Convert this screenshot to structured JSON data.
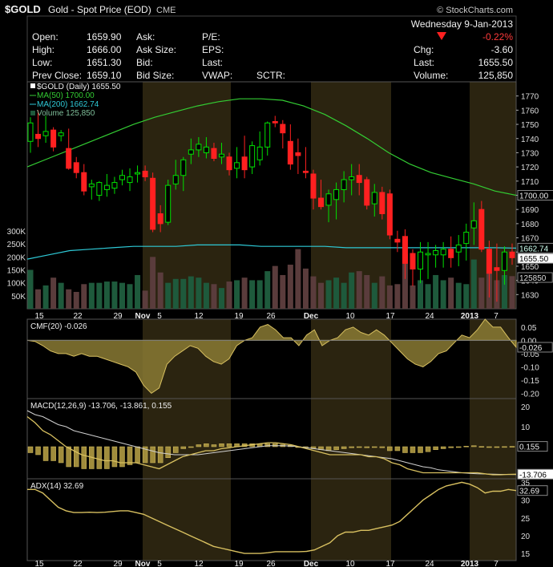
{
  "header": {
    "symbol": "$GOLD",
    "name": "Gold - Spot Price (EOD)",
    "exchange": "CME",
    "brand": "© StockCharts.com",
    "date": "Wednesday  9-Jan-2013",
    "change_pct": "-0.22%",
    "quote": [
      {
        "label": "Open:",
        "value": "1659.90"
      },
      {
        "label": "High:",
        "value": "1666.00"
      },
      {
        "label": "Low:",
        "value": "1651.30"
      },
      {
        "label": "Prev Close:",
        "value": "1659.10"
      }
    ],
    "quote2": [
      {
        "label": "Ask:",
        "value": ""
      },
      {
        "label": "Ask Size:",
        "value": ""
      },
      {
        "label": "Bid:",
        "value": ""
      },
      {
        "label": "Bid Size:",
        "value": ""
      }
    ],
    "quote3": [
      "P/E:",
      "EPS:",
      "Last:",
      "VWAP:"
    ],
    "sctr": "SCTR:",
    "right": [
      {
        "label": "Chg:",
        "value": "-3.60"
      },
      {
        "label": "Last:",
        "value": "1655.50"
      },
      {
        "label": "Volume:",
        "value": "125,850"
      }
    ]
  },
  "colors": {
    "up": "#00e000",
    "down": "#ff2020",
    "ma50": "#33cc33",
    "ma200": "#2ec9d6",
    "shade": "#2b2410",
    "ind": "#d8c060"
  },
  "chart_data": [
    {
      "type": "candlestick",
      "title": "$GOLD (Daily) 1655.50",
      "legend": [
        "MA(50) 1700.00",
        "MA(200) 1662.74",
        "Volume 125,850"
      ],
      "ylim": [
        1620,
        1780
      ],
      "yticks": [
        1630,
        1640,
        1650,
        1660,
        1670,
        1680,
        1690,
        1700,
        1710,
        1720,
        1730,
        1740,
        1750,
        1760,
        1770
      ],
      "value_tags": [
        "1700.00",
        "1662.74",
        "1655.50"
      ],
      "xticks": [
        "15",
        "22",
        "29",
        "Nov",
        "5",
        "12",
        "19",
        "26",
        "Dec",
        "10",
        "17",
        "24",
        "2013",
        "7"
      ],
      "ohlc": [
        [
          1738,
          1755,
          1730,
          1751
        ],
        [
          1743,
          1760,
          1734,
          1740
        ],
        [
          1742,
          1756,
          1737,
          1745
        ],
        [
          1746,
          1748,
          1731,
          1734
        ],
        [
          1742,
          1746,
          1738,
          1744
        ],
        [
          1733,
          1747,
          1718,
          1719
        ],
        [
          1723,
          1727,
          1712,
          1716
        ],
        [
          1716,
          1722,
          1700,
          1703
        ],
        [
          1706,
          1711,
          1697,
          1708
        ],
        [
          1700,
          1710,
          1696,
          1709
        ],
        [
          1704,
          1715,
          1699,
          1707
        ],
        [
          1705,
          1713,
          1701,
          1709
        ],
        [
          1711,
          1718,
          1707,
          1714
        ],
        [
          1709,
          1719,
          1703,
          1713
        ],
        [
          1715,
          1721,
          1709,
          1716
        ],
        [
          1717,
          1721,
          1710,
          1713
        ],
        [
          1712,
          1716,
          1674,
          1676
        ],
        [
          1687,
          1693,
          1674,
          1680
        ],
        [
          1681,
          1711,
          1679,
          1707
        ],
        [
          1708,
          1725,
          1704,
          1714
        ],
        [
          1714,
          1727,
          1703,
          1725
        ],
        [
          1729,
          1740,
          1722,
          1732
        ],
        [
          1732,
          1741,
          1727,
          1736
        ],
        [
          1730,
          1741,
          1726,
          1734
        ],
        [
          1733,
          1737,
          1724,
          1726
        ],
        [
          1727,
          1737,
          1722,
          1729
        ],
        [
          1727,
          1730,
          1714,
          1718
        ],
        [
          1719,
          1734,
          1712,
          1723
        ],
        [
          1727,
          1742,
          1712,
          1718
        ],
        [
          1720,
          1738,
          1715,
          1735
        ],
        [
          1725,
          1745,
          1721,
          1734
        ],
        [
          1734,
          1752,
          1728,
          1751
        ],
        [
          1752,
          1756,
          1748,
          1751
        ],
        [
          1750,
          1753,
          1733,
          1744
        ],
        [
          1738,
          1750,
          1718,
          1722
        ],
        [
          1730,
          1740,
          1715,
          1728
        ],
        [
          1717,
          1734,
          1712,
          1716
        ],
        [
          1715,
          1718,
          1690,
          1698
        ],
        [
          1698,
          1711,
          1690,
          1692
        ],
        [
          1693,
          1704,
          1681,
          1701
        ],
        [
          1697,
          1709,
          1683,
          1704
        ],
        [
          1704,
          1717,
          1695,
          1711
        ],
        [
          1711,
          1722,
          1700,
          1713
        ],
        [
          1714,
          1722,
          1700,
          1709
        ],
        [
          1711,
          1713,
          1690,
          1693
        ],
        [
          1694,
          1708,
          1685,
          1702
        ],
        [
          1702,
          1706,
          1683,
          1687
        ],
        [
          1701,
          1704,
          1669,
          1672
        ],
        [
          1669,
          1675,
          1660,
          1667
        ],
        [
          1671,
          1676,
          1641,
          1652
        ],
        [
          1659,
          1662,
          1636,
          1648
        ],
        [
          1648,
          1667,
          1638,
          1660
        ],
        [
          1658,
          1667,
          1641,
          1659
        ],
        [
          1658,
          1665,
          1649,
          1661
        ],
        [
          1658,
          1667,
          1649,
          1662
        ],
        [
          1662,
          1671,
          1649,
          1656
        ],
        [
          1660,
          1672,
          1650,
          1665
        ],
        [
          1666,
          1680,
          1654,
          1674
        ],
        [
          1677,
          1695,
          1665,
          1682
        ],
        [
          1690,
          1696,
          1660,
          1662
        ],
        [
          1662,
          1668,
          1628,
          1645
        ],
        [
          1649,
          1666,
          1625,
          1647
        ],
        [
          1647,
          1664,
          1637,
          1660
        ],
        [
          1660,
          1666,
          1651,
          1656
        ]
      ],
      "ma50": [
        1720,
        1726,
        1732,
        1738,
        1744,
        1750,
        1755,
        1759,
        1763,
        1766,
        1768,
        1768,
        1767,
        1763,
        1757,
        1749,
        1740,
        1730,
        1722,
        1716,
        1712,
        1708,
        1703,
        1700
      ],
      "ma200": [
        1655,
        1658,
        1661,
        1662,
        1663,
        1664,
        1664,
        1664,
        1665,
        1665,
        1665,
        1664,
        1664,
        1664,
        1664,
        1663,
        1663,
        1663,
        1663,
        1663,
        1663,
        1663,
        1663,
        1662.74
      ],
      "volume": {
        "labels": [
          "300K",
          "250K",
          "200K",
          "150K",
          "100K",
          "50K"
        ],
        "ylim": [
          0,
          300000
        ],
        "values": [
          150,
          75,
          90,
          120,
          100,
          75,
          65,
          95,
          100,
          100,
          105,
          105,
          100,
          95,
          130,
          70,
          200,
          140,
          100,
          115,
          115,
          125,
          120,
          100,
          95,
          80,
          105,
          110,
          120,
          110,
          110,
          145,
          165,
          130,
          170,
          230,
          155,
          125,
          100,
          110,
          120,
          100,
          140,
          145,
          130,
          100,
          125,
          90,
          95,
          210,
          90,
          110,
          95,
          130,
          110,
          120,
          100,
          95,
          190,
          120,
          140,
          110,
          130,
          125.85
        ]
      }
    },
    {
      "type": "area",
      "title": "CMF(20) -0.026",
      "ylim": [
        -0.22,
        0.08
      ],
      "yticks": [
        "0.05",
        "0.00",
        "-0.05",
        "-0.10",
        "-0.15",
        "-0.20"
      ],
      "tag": "-0.026",
      "values": [
        0.0,
        -0.004,
        -0.02,
        -0.04,
        -0.05,
        -0.05,
        -0.06,
        -0.05,
        -0.06,
        -0.06,
        -0.07,
        -0.08,
        -0.09,
        -0.1,
        -0.12,
        -0.17,
        -0.2,
        -0.18,
        -0.09,
        -0.06,
        -0.04,
        -0.02,
        -0.03,
        -0.06,
        -0.08,
        -0.09,
        -0.07,
        -0.02,
        0.0,
        0.01,
        0.05,
        0.06,
        0.04,
        0.01,
        0.01,
        -0.02,
        0.02,
        0.04,
        -0.02,
        0.0,
        0.01,
        0.04,
        0.05,
        0.03,
        0.02,
        0.04,
        0.02,
        -0.01,
        -0.04,
        -0.07,
        -0.09,
        -0.1,
        -0.08,
        -0.05,
        -0.04,
        -0.01,
        0.02,
        0.01,
        0.04,
        0.08,
        0.05,
        0.05,
        0.01,
        -0.026
      ]
    },
    {
      "type": "line+histogram",
      "title": "MACD(12,26,9) -13.706, -13.861, 0.155",
      "ylim": [
        -16,
        24
      ],
      "yticks": [
        "20",
        "10",
        "0"
      ],
      "tags": [
        "0.155",
        "-13.706"
      ],
      "macd": [
        15,
        12,
        8,
        6,
        3,
        0,
        -2,
        -4,
        -5,
        -6,
        -7,
        -7,
        -8,
        -8,
        -8,
        -9,
        -10,
        -11,
        -9,
        -7,
        -5,
        -4,
        -3,
        -2,
        -2,
        -1,
        -0.5,
        0,
        0.5,
        1,
        1.5,
        2,
        2,
        1.5,
        1,
        0,
        -1,
        -2,
        -3,
        -4,
        -4,
        -4,
        -4,
        -4,
        -5,
        -5,
        -6,
        -8,
        -9,
        -11,
        -12,
        -13,
        -13,
        -13,
        -13,
        -13,
        -13,
        -13,
        -13,
        -13.5,
        -14,
        -14,
        -13.8,
        -13.706
      ],
      "signal": [
        18,
        16,
        15,
        13,
        11,
        10,
        8,
        7,
        6,
        5,
        4,
        3,
        2,
        1,
        0,
        -1,
        -2,
        -3,
        -3.5,
        -4,
        -4,
        -4,
        -4,
        -3.5,
        -3,
        -2.5,
        -2,
        -1.5,
        -1,
        -0.5,
        0,
        0.5,
        0.5,
        0.5,
        0.3,
        0,
        -0.5,
        -1,
        -1.5,
        -2,
        -2.5,
        -3,
        -3.5,
        -4,
        -4.5,
        -5,
        -5.5,
        -6,
        -7,
        -8,
        -9,
        -10,
        -10.5,
        -11.5,
        -12,
        -12.5,
        -13,
        -13.3,
        -13.5,
        -13.6,
        -13.7,
        -13.8,
        -13.85,
        -13.861
      ]
    },
    {
      "type": "line",
      "title": "ADX(14) 32.69",
      "ylim": [
        13,
        36
      ],
      "yticks": [
        "35",
        "30",
        "25",
        "20",
        "15"
      ],
      "tag": "32.69",
      "values": [
        33,
        33,
        32,
        30,
        28,
        27,
        26.5,
        26.5,
        26.6,
        26.5,
        26.6,
        26.8,
        27,
        27,
        26.5,
        26,
        25,
        24,
        23,
        22,
        21,
        20,
        19,
        18,
        17,
        16.5,
        16,
        15.5,
        15,
        15,
        15,
        15.2,
        15.5,
        15.5,
        15.5,
        15.5,
        15.6,
        16,
        17,
        18,
        20,
        21,
        21,
        21.5,
        21.5,
        22,
        22.5,
        23,
        24,
        26,
        28,
        30,
        31.5,
        33,
        34,
        34.5,
        35,
        34.5,
        33.5,
        32,
        32.5,
        32.5,
        33,
        32.69
      ]
    }
  ]
}
